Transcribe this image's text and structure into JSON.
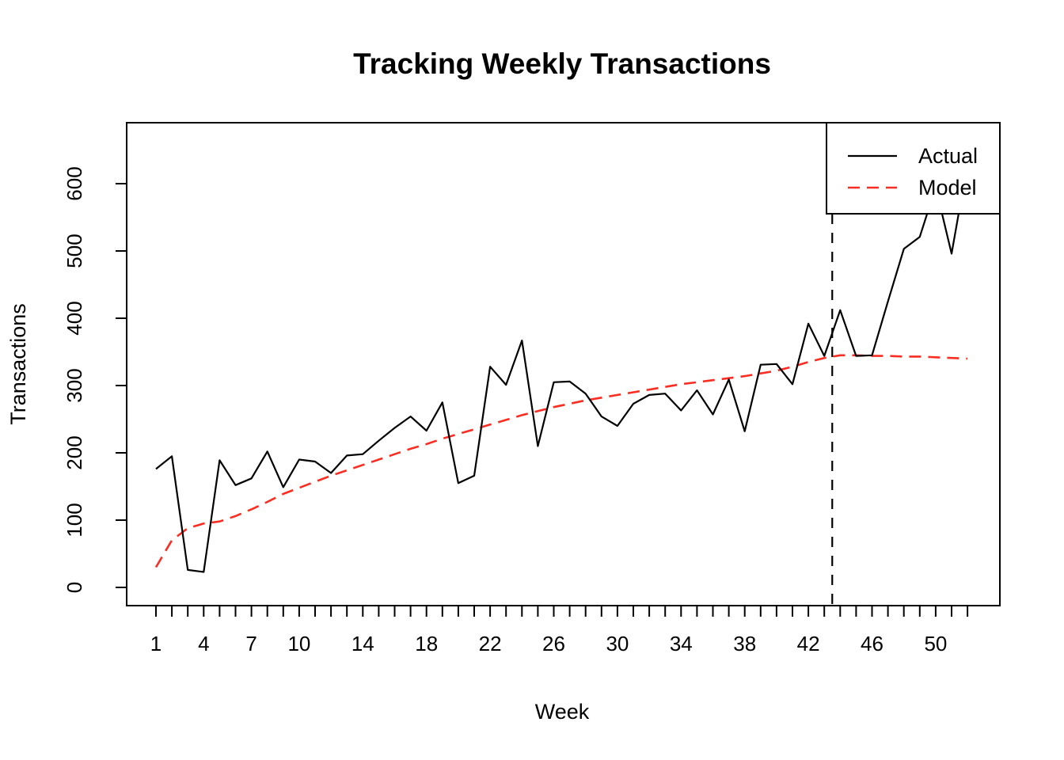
{
  "chart_data": {
    "type": "line",
    "title": "Tracking Weekly Transactions",
    "xlabel": "Week",
    "ylabel": "Transactions",
    "x": [
      1,
      2,
      3,
      4,
      5,
      6,
      7,
      8,
      9,
      10,
      11,
      12,
      13,
      14,
      15,
      16,
      17,
      18,
      19,
      20,
      21,
      22,
      23,
      24,
      25,
      26,
      27,
      28,
      29,
      30,
      31,
      32,
      33,
      34,
      35,
      36,
      37,
      38,
      39,
      40,
      41,
      42,
      43,
      44,
      45,
      46,
      47,
      48,
      49,
      50,
      51,
      52
    ],
    "series": [
      {
        "name": "Actual",
        "color": "#000000",
        "style": "solid",
        "values": [
          176,
          195,
          26,
          23,
          189,
          152,
          162,
          202,
          149,
          190,
          187,
          170,
          196,
          198,
          218,
          237,
          254,
          233,
          275,
          155,
          166,
          328,
          301,
          367,
          210,
          305,
          306,
          288,
          254,
          240,
          273,
          286,
          288,
          263,
          293,
          257,
          309,
          232,
          331,
          332,
          302,
          392,
          344,
          412,
          344,
          345,
          425,
          503,
          521,
          595,
          496,
          630
        ]
      },
      {
        "name": "Model",
        "color": "#F92D22",
        "style": "dashed",
        "values": [
          30,
          70,
          88,
          95,
          98,
          106,
          116,
          127,
          139,
          148,
          157,
          166,
          174,
          182,
          190,
          198,
          206,
          213,
          221,
          228,
          235,
          242,
          249,
          256,
          262,
          268,
          273,
          278,
          282,
          286,
          290,
          294,
          298,
          302,
          305,
          308,
          311,
          314,
          318,
          322,
          328,
          335,
          341,
          345,
          345,
          344,
          344,
          343,
          343,
          342,
          341,
          340
        ]
      }
    ],
    "vline": {
      "x": 43.5,
      "color": "#000000",
      "style": "dashed"
    },
    "y_ticks": [
      0,
      100,
      200,
      300,
      400,
      500,
      600
    ],
    "x_ticks": {
      "minor_every_week": true,
      "labeled_weeks": [
        1,
        4,
        7,
        10,
        14,
        18,
        22,
        26,
        30,
        34,
        38,
        42,
        46,
        50
      ]
    },
    "xlim": [
      0,
      54
    ],
    "ylim": [
      -27,
      690
    ],
    "grid": false,
    "legend": {
      "position": "top-right",
      "entries": [
        {
          "label": "Actual",
          "color": "#000000",
          "style": "solid"
        },
        {
          "label": "Model",
          "color": "#F92D22",
          "style": "dashed"
        }
      ]
    }
  }
}
